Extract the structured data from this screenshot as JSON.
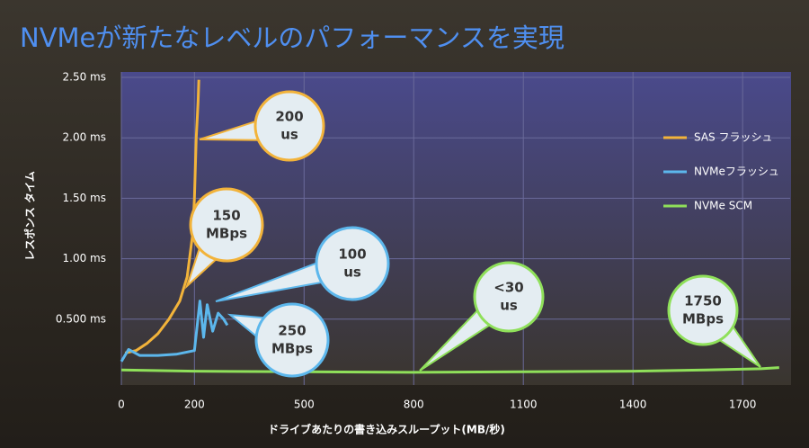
{
  "chart_data": {
    "type": "line",
    "title": "NVMeが新たなレベルのパフォーマンスを実現",
    "x_label": "ドライブあたりの書き込みスループット(MB/秒)",
    "y_label": "レスポンス タイム",
    "xlim": [
      0,
      1830
    ],
    "xticks": [
      0,
      200,
      500,
      800,
      1100,
      1400,
      1700
    ],
    "ylim": [
      0,
      2.5
    ],
    "yticks": [
      {
        "value": 0.5,
        "label": "0.500 ms"
      },
      {
        "value": 1.0,
        "label": "1.00 ms"
      },
      {
        "value": 1.5,
        "label": "1.50 ms"
      },
      {
        "value": 2.0,
        "label": "2.00 ms"
      },
      {
        "value": 2.5,
        "label": "2.50 ms"
      }
    ],
    "grid": true,
    "legend": "right",
    "series": [
      {
        "name": "SAS フラッシュ",
        "color": "#f2b33a",
        "x": [
          10,
          40,
          70,
          100,
          130,
          160,
          180,
          195,
          200,
          205,
          210,
          212
        ],
        "values": [
          0.22,
          0.24,
          0.3,
          0.38,
          0.5,
          0.65,
          0.85,
          1.2,
          1.5,
          2.0,
          2.3,
          2.48
        ]
      },
      {
        "name": "NVMeフラッシュ",
        "color": "#5cb7ec",
        "x": [
          0,
          20,
          50,
          100,
          150,
          200,
          215,
          225,
          235,
          250,
          265,
          280,
          290
        ],
        "values": [
          0.15,
          0.25,
          0.2,
          0.2,
          0.21,
          0.24,
          0.65,
          0.35,
          0.62,
          0.4,
          0.55,
          0.5,
          0.45
        ]
      },
      {
        "name": "NVMe SCM",
        "color": "#8fe05a",
        "x": [
          0,
          200,
          500,
          800,
          1100,
          1400,
          1600,
          1750,
          1800
        ],
        "values": [
          0.08,
          0.07,
          0.065,
          0.06,
          0.065,
          0.07,
          0.08,
          0.09,
          0.1
        ]
      }
    ],
    "annotations": [
      {
        "lines": [
          "200",
          "us"
        ]
      },
      {
        "lines": [
          "150",
          "MBps"
        ]
      },
      {
        "lines": [
          "100",
          "us"
        ]
      },
      {
        "lines": [
          "250",
          "MBps"
        ]
      },
      {
        "lines": [
          "<30",
          "us"
        ]
      },
      {
        "lines": [
          "1750",
          "MBps"
        ]
      }
    ]
  }
}
